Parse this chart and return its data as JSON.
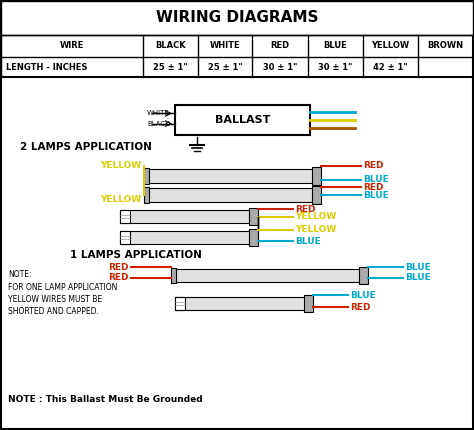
{
  "title": "WIRING DIAGRAMS",
  "bg_color": "#ffffff",
  "table_headers": [
    "WIRE",
    "BLACK",
    "WHITE",
    "RED",
    "BLUE",
    "YELLOW",
    "BROWN"
  ],
  "table_row": [
    "LENGTH - INCHES",
    "25 ± 1\"",
    "25 ± 1\"",
    "30 ± 1\"",
    "30 ± 1\"",
    "42 ± 1\"",
    ""
  ],
  "note1": "NOTE:\nFOR ONE LAMP APPLICATION\nYELLOW WIRES MUST BE\nSHORTED AND CAPPED.",
  "note2": "NOTE : This Ballast Must Be Grounded",
  "section1": "2 LAMPS APPLICATION",
  "section2": "1 LAMPS APPLICATION",
  "colors": {
    "red": "#cc2200",
    "blue": "#00aacc",
    "yellow": "#ddcc00",
    "brown": "#aa5500",
    "black": "#000000",
    "white": "#ffffff",
    "light_gray": "#e0e0e0",
    "mid_gray": "#aaaaaa"
  }
}
